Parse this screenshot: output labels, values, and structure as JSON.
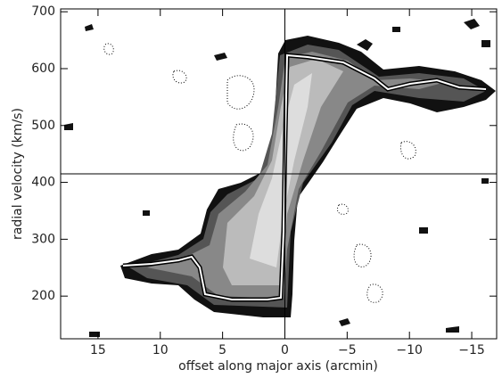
{
  "chart_data": {
    "type": "contour",
    "x_label": "offset along major axis (arcmin)",
    "y_label": "radial velocity (km/s)",
    "xlim": [
      18,
      -17
    ],
    "ylim": [
      125,
      705
    ],
    "xticks": [
      15,
      10,
      5,
      0,
      {
        "value": -5,
        "label": "−5"
      },
      {
        "value": -10,
        "label": "−10"
      },
      {
        "value": -15,
        "label": "−15"
      }
    ],
    "yticks": [
      200,
      300,
      400,
      500,
      600,
      700
    ],
    "reference_lines": {
      "x": 0,
      "y": 415
    }
  }
}
